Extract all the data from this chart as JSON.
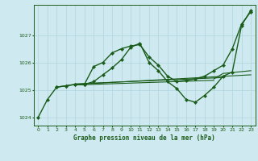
{
  "title": "Graphe pression niveau de la mer (hPa)",
  "bg_color": "#cfe9f0",
  "grid_color": "#b0d4de",
  "line_color": "#1a5c1a",
  "xlim": [
    -0.5,
    23.5
  ],
  "ylim": [
    1023.7,
    1028.1
  ],
  "yticks": [
    1024,
    1025,
    1026,
    1027
  ],
  "xticks": [
    0,
    1,
    2,
    3,
    4,
    5,
    6,
    7,
    8,
    9,
    10,
    11,
    12,
    13,
    14,
    15,
    16,
    17,
    18,
    19,
    20,
    21,
    22,
    23
  ],
  "series": [
    {
      "x": [
        0,
        1,
        2,
        3,
        4,
        5,
        6,
        7,
        8,
        9,
        10,
        11,
        12,
        13,
        14,
        15,
        16,
        17,
        18,
        19,
        20,
        21,
        22,
        23
      ],
      "y": [
        1024.0,
        1024.65,
        1025.1,
        1025.15,
        1025.2,
        1025.2,
        1025.85,
        1026.0,
        1026.35,
        1026.5,
        1026.6,
        1026.65,
        1026.2,
        1025.9,
        1025.5,
        1025.3,
        1025.35,
        1025.4,
        1025.5,
        1025.7,
        1025.9,
        1026.5,
        1027.4,
        1027.85
      ],
      "marker": "D",
      "lw": 1.0,
      "ms": 2.2
    },
    {
      "x": [
        2,
        3,
        4,
        5,
        6,
        7,
        8,
        9,
        10,
        11,
        12,
        13,
        14,
        15,
        16,
        17,
        18,
        19,
        20,
        21,
        22,
        23
      ],
      "y": [
        1025.1,
        1025.15,
        1025.2,
        1025.2,
        1025.3,
        1025.55,
        1025.8,
        1026.1,
        1026.55,
        1026.7,
        1026.0,
        1025.7,
        1025.3,
        1025.05,
        1024.65,
        1024.55,
        1024.8,
        1025.1,
        1025.5,
        1025.65,
        1027.35,
        1027.9
      ],
      "marker": "D",
      "lw": 1.0,
      "ms": 2.2
    },
    {
      "x": [
        4,
        23
      ],
      "y": [
        1025.2,
        1025.55
      ],
      "marker": null,
      "lw": 0.8,
      "ms": 0
    },
    {
      "x": [
        4,
        19
      ],
      "y": [
        1025.18,
        1025.35
      ],
      "marker": null,
      "lw": 0.8,
      "ms": 0
    },
    {
      "x": [
        4,
        20
      ],
      "y": [
        1025.22,
        1025.45
      ],
      "marker": null,
      "lw": 0.8,
      "ms": 0
    },
    {
      "x": [
        19,
        20,
        23
      ],
      "y": [
        1025.4,
        1025.6,
        1025.7
      ],
      "marker": null,
      "lw": 0.8,
      "ms": 0
    }
  ]
}
